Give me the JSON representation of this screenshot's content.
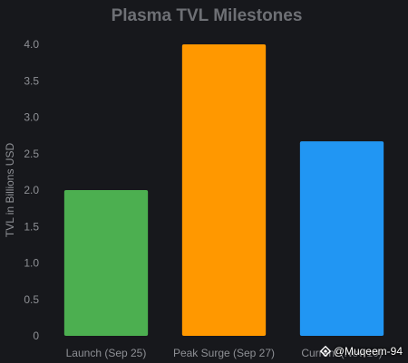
{
  "chart_data": {
    "type": "bar",
    "title": "Plasma TVL Milestones",
    "xlabel": "",
    "ylabel": "TVL in Billions USD",
    "categories": [
      "Launch (Sep 25)",
      "Peak Surge (Sep 27)",
      "Current (Nov 10)"
    ],
    "values": [
      2.0,
      4.0,
      2.67
    ],
    "bar_colors": [
      "#4caf50",
      "#ff9800",
      "#2196f3"
    ],
    "ylim": [
      0,
      4.0
    ],
    "y_ticks": [
      "0",
      "0.5",
      "1.0",
      "1.5",
      "2.0",
      "2.5",
      "3.0",
      "3.5",
      "4.0"
    ],
    "grid": false,
    "legend": "none"
  },
  "watermark": {
    "text": "@Muqeem-94",
    "icon": "binance-square-icon"
  }
}
